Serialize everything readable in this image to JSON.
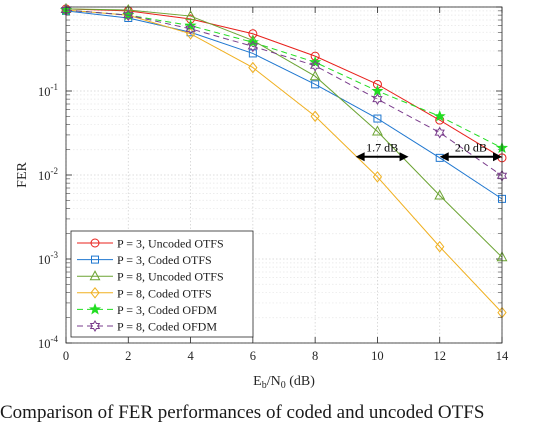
{
  "chart_data": {
    "type": "line",
    "xlabel_main": "E",
    "xlabel_sub1": "b",
    "xlabel_mid": "/N",
    "xlabel_sub2": "0",
    "xlabel_unit": " (dB)",
    "ylabel": "FER",
    "xlim": [
      0,
      14
    ],
    "ylim": [
      0.0001,
      1
    ],
    "yscale": "log",
    "grid": true,
    "legend_position": "bottom-left",
    "x_ticks": [
      "0",
      "2",
      "4",
      "6",
      "8",
      "10",
      "12",
      "14"
    ],
    "y_ticks": [
      {
        "base": "10",
        "exp": "-4"
      },
      {
        "base": "10",
        "exp": "-3"
      },
      {
        "base": "10",
        "exp": "-2"
      },
      {
        "base": "10",
        "exp": "-1"
      }
    ],
    "series": [
      {
        "name": "P = 3, Uncoded OTFS",
        "color": "#e8201b",
        "marker": "circle",
        "dash": "solid",
        "x": [
          0,
          2,
          4,
          6,
          8,
          10,
          12,
          14
        ],
        "y": [
          0.95,
          0.9,
          0.72,
          0.48,
          0.26,
          0.12,
          0.045,
          0.016
        ]
      },
      {
        "name": "P = 3, Coded OTFS",
        "color": "#1f77d0",
        "marker": "square",
        "dash": "solid",
        "x": [
          0,
          2,
          4,
          6,
          8,
          10,
          12,
          14
        ],
        "y": [
          0.9,
          0.74,
          0.5,
          0.28,
          0.12,
          0.047,
          0.016,
          0.0052
        ]
      },
      {
        "name": "P = 8, Uncoded OTFS",
        "color": "#6ba332",
        "marker": "triangle",
        "dash": "solid",
        "x": [
          0,
          2,
          4,
          6,
          8,
          10,
          12,
          14
        ],
        "y": [
          0.95,
          0.92,
          0.78,
          0.4,
          0.15,
          0.033,
          0.0057,
          0.00105
        ]
      },
      {
        "name": "P = 8, Coded OTFS",
        "color": "#f0b020",
        "marker": "diamond",
        "dash": "solid",
        "x": [
          0,
          2,
          4,
          6,
          8,
          10,
          12,
          14
        ],
        "y": [
          0.92,
          0.8,
          0.48,
          0.19,
          0.05,
          0.0095,
          0.0014,
          0.00023
        ]
      },
      {
        "name": "P = 3, Coded OFDM",
        "color": "#22dd22",
        "marker": "star",
        "dash": "dashed",
        "x": [
          0,
          2,
          4,
          6,
          8,
          10,
          12,
          14
        ],
        "y": [
          0.92,
          0.8,
          0.6,
          0.38,
          0.22,
          0.1,
          0.05,
          0.021
        ]
      },
      {
        "name": "P = 8, Coded OFDM",
        "color": "#7a3c8c",
        "marker": "hexagram",
        "dash": "dashed",
        "x": [
          0,
          2,
          4,
          6,
          8,
          10,
          12,
          14
        ],
        "y": [
          0.92,
          0.8,
          0.55,
          0.34,
          0.2,
          0.08,
          0.032,
          0.0098
        ]
      }
    ],
    "annotations": [
      {
        "text": "1.7 dB",
        "x1": 9.3,
        "x2": 11.0,
        "y": 0.0165
      },
      {
        "text": "2.0 dB",
        "x1": 12.0,
        "x2": 14.0,
        "y": 0.0165
      }
    ]
  },
  "caption": "Comparison of FER performances of coded and uncoded OTFS"
}
